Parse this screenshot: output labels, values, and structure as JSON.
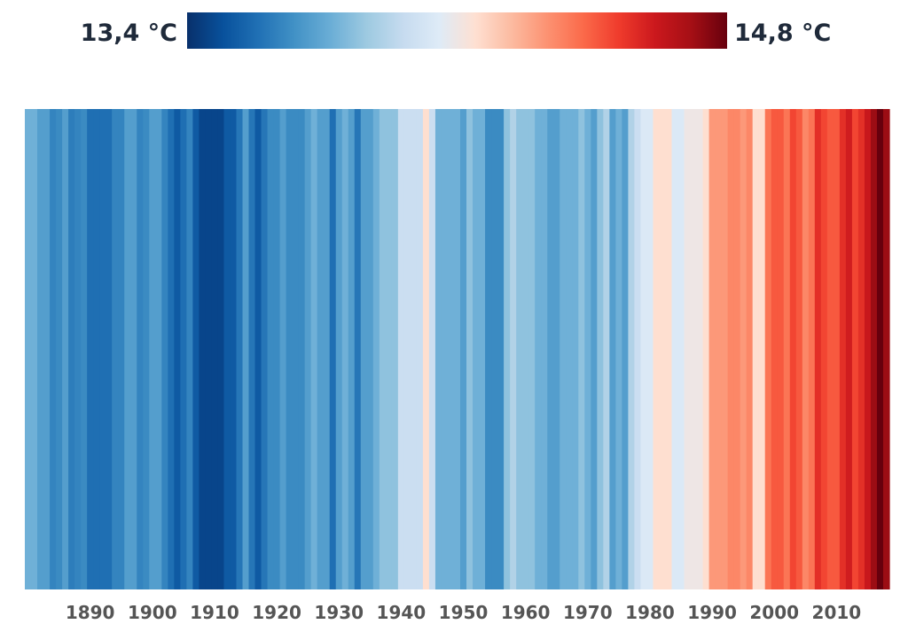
{
  "chart_data": {
    "type": "heatmap",
    "title": "",
    "xlabel": "",
    "ylabel": "",
    "color_scale": {
      "min_label": "13,4 °C",
      "max_label": "14,8 °C",
      "min_value": 13.4,
      "max_value": 14.8,
      "colors": [
        "#08306b",
        "#08519c",
        "#2171b5",
        "#4292c6",
        "#6baed6",
        "#9ecae1",
        "#c6dbef",
        "#deebf7",
        "#fee0d2",
        "#fcbba1",
        "#fc9272",
        "#fb6a4a",
        "#ef3b2c",
        "#cb181d",
        "#a50f15",
        "#67000d"
      ]
    },
    "x_axis": {
      "start_year": 1880,
      "end_year": 2018,
      "tick_labels": [
        "1890",
        "1900",
        "1910",
        "1920",
        "1930",
        "1940",
        "1950",
        "1960",
        "1970",
        "1980",
        "1990",
        "2000",
        "2010"
      ]
    },
    "x": [
      1880,
      1881,
      1882,
      1883,
      1884,
      1885,
      1886,
      1887,
      1888,
      1889,
      1890,
      1891,
      1892,
      1893,
      1894,
      1895,
      1896,
      1897,
      1898,
      1899,
      1900,
      1901,
      1902,
      1903,
      1904,
      1905,
      1906,
      1907,
      1908,
      1909,
      1910,
      1911,
      1912,
      1913,
      1914,
      1915,
      1916,
      1917,
      1918,
      1919,
      1920,
      1921,
      1922,
      1923,
      1924,
      1925,
      1926,
      1927,
      1928,
      1929,
      1930,
      1931,
      1932,
      1933,
      1934,
      1935,
      1936,
      1937,
      1938,
      1939,
      1940,
      1941,
      1942,
      1943,
      1944,
      1945,
      1946,
      1947,
      1948,
      1949,
      1950,
      1951,
      1952,
      1953,
      1954,
      1955,
      1956,
      1957,
      1958,
      1959,
      1960,
      1961,
      1962,
      1963,
      1964,
      1965,
      1966,
      1967,
      1968,
      1969,
      1970,
      1971,
      1972,
      1973,
      1974,
      1975,
      1976,
      1977,
      1978,
      1979,
      1980,
      1981,
      1982,
      1983,
      1984,
      1985,
      1986,
      1987,
      1988,
      1989,
      1990,
      1991,
      1992,
      1993,
      1994,
      1995,
      1996,
      1997,
      1998,
      1999,
      2000,
      2001,
      2002,
      2003,
      2004,
      2005,
      2006,
      2007,
      2008,
      2009,
      2010,
      2011,
      2012,
      2013,
      2014,
      2015,
      2016,
      2017,
      2018
    ],
    "values": [
      13.78,
      13.78,
      13.72,
      13.72,
      13.64,
      13.66,
      13.72,
      13.62,
      13.64,
      13.66,
      13.58,
      13.58,
      13.58,
      13.58,
      13.64,
      13.64,
      13.72,
      13.72,
      13.64,
      13.66,
      13.72,
      13.72,
      13.64,
      13.58,
      13.52,
      13.58,
      13.64,
      13.52,
      13.46,
      13.46,
      13.46,
      13.46,
      13.52,
      13.52,
      13.6,
      13.72,
      13.6,
      13.52,
      13.6,
      13.66,
      13.66,
      13.72,
      13.66,
      13.66,
      13.66,
      13.72,
      13.78,
      13.72,
      13.72,
      13.58,
      13.72,
      13.78,
      13.72,
      13.6,
      13.72,
      13.72,
      13.78,
      13.84,
      13.84,
      13.84,
      13.98,
      13.98,
      13.98,
      13.98,
      14.15,
      13.98,
      13.78,
      13.78,
      13.78,
      13.78,
      13.72,
      13.84,
      13.78,
      13.78,
      13.66,
      13.66,
      13.66,
      13.84,
      13.91,
      13.84,
      13.84,
      13.84,
      13.78,
      13.78,
      13.72,
      13.72,
      13.78,
      13.78,
      13.78,
      13.84,
      13.78,
      13.72,
      13.84,
      13.91,
      13.72,
      13.78,
      13.72,
      13.91,
      13.98,
      14.04,
      14.04,
      14.15,
      14.15,
      14.15,
      14.04,
      14.04,
      14.1,
      14.1,
      14.1,
      14.15,
      14.32,
      14.32,
      14.32,
      14.36,
      14.36,
      14.32,
      14.36,
      14.15,
      14.15,
      14.4,
      14.46,
      14.46,
      14.4,
      14.5,
      14.46,
      14.36,
      14.4,
      14.55,
      14.5,
      14.46,
      14.46,
      14.55,
      14.6,
      14.5,
      14.55,
      14.62,
      14.72,
      14.8,
      14.72
    ]
  }
}
